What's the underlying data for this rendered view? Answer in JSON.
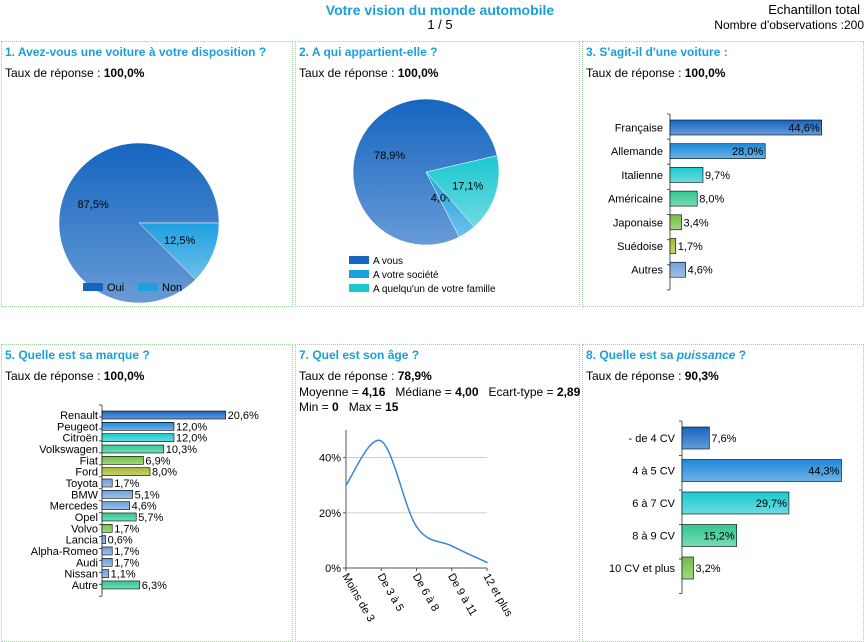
{
  "header": {
    "title": "Votre vision du monde automobile",
    "page": "1 / 5",
    "sample": "Echantillon total",
    "observations": "Nombre d'observations :200"
  },
  "colors": {
    "accent": "#1aa0d8",
    "navy": "#1565c0",
    "blue": "#1e88d8",
    "cyan": "#1cc8d0",
    "green": "#30c890",
    "lime": "#70c040",
    "olive": "#a8b830",
    "steel": "#6f9fd8"
  },
  "panels": [
    {
      "title": "1. Avez-vous une voiture à votre disposition ?",
      "rate_label": "Taux de réponse : ",
      "rate_value": "100,0%"
    },
    {
      "title": "2. A qui appartient-elle ?",
      "rate_label": "Taux de réponse : ",
      "rate_value": "100,0%"
    },
    {
      "title": "3. S'agit-il d'une voiture :",
      "rate_label": "Taux de réponse : ",
      "rate_value": "100,0%"
    },
    {
      "title": "5. Quelle est sa marque ?",
      "rate_label": "Taux de réponse : ",
      "rate_value": "100,0%"
    },
    {
      "title": "7. Quel est son âge ?",
      "rate_label": "Taux de réponse : ",
      "rate_value": "78,9%",
      "stats_line1": {
        "mean_label": "Moyenne = ",
        "mean": "4,16",
        "median_label": "Médiane = ",
        "median": "4,00",
        "sd_label": "Ecart-type = ",
        "sd": "2,89"
      },
      "stats_line2": {
        "min_label": "Min = ",
        "min": "0",
        "max_label": "Max = ",
        "max": "15"
      }
    },
    {
      "title_prefix": "8. Quelle est sa ",
      "title_emph": "puissance",
      "title_suffix": " ?",
      "rate_label": "Taux de réponse : ",
      "rate_value": "90,3%"
    }
  ],
  "chart_data": [
    {
      "type": "pie",
      "id": "q1",
      "categories": [
        "Oui",
        "Non"
      ],
      "values": [
        87.5,
        12.5
      ],
      "labels": [
        "87,5%",
        "12,5%"
      ],
      "colors": [
        "#1565c0",
        "#1e9fe0"
      ],
      "legend": "bottom"
    },
    {
      "type": "pie",
      "id": "q2",
      "categories": [
        "A vous",
        "A votre société",
        "A quelqu'un de votre famille"
      ],
      "values": [
        78.9,
        4.0,
        17.1
      ],
      "labels": [
        "78,9%",
        "4,0%",
        "17,1%"
      ],
      "colors": [
        "#1565c0",
        "#1e9fe0",
        "#1cc8d0"
      ],
      "legend": "bottom-left"
    },
    {
      "type": "bar",
      "orientation": "horizontal",
      "id": "q3",
      "categories": [
        "Française",
        "Allemande",
        "Italienne",
        "Américaine",
        "Japonaise",
        "Suédoise",
        "Autres"
      ],
      "values": [
        44.6,
        28.0,
        9.7,
        8.0,
        3.4,
        1.7,
        4.6
      ],
      "labels": [
        "44,6%",
        "28,0%",
        "9,7%",
        "8,0%",
        "3,4%",
        "1,7%",
        "4,6%"
      ],
      "colors": [
        "#1565c0",
        "#1e88d8",
        "#1cc8d0",
        "#30c890",
        "#70c040",
        "#a8b830",
        "#6f9fd8"
      ],
      "xlim": [
        0,
        50
      ]
    },
    {
      "type": "bar",
      "orientation": "horizontal",
      "id": "q5",
      "categories": [
        "Renault",
        "Peugeot",
        "Citroën",
        "Volkswagen",
        "Fiat",
        "Ford",
        "Toyota",
        "BMW",
        "Mercedes",
        "Opel",
        "Volvo",
        "Lancia",
        "Alpha-Romeo",
        "Audi",
        "Nissan",
        "Autre"
      ],
      "values": [
        20.6,
        12.0,
        12.0,
        10.3,
        6.9,
        8.0,
        1.7,
        5.1,
        4.6,
        5.7,
        1.7,
        0.6,
        1.7,
        1.7,
        1.1,
        6.3
      ],
      "labels": [
        "20,6%",
        "12,0%",
        "12,0%",
        "10,3%",
        "6,9%",
        "8,0%",
        "1,7%",
        "5,1%",
        "4,6%",
        "5,7%",
        "1,7%",
        "0,6%",
        "1,7%",
        "1,7%",
        "1,1%",
        "6,3%"
      ],
      "colors": [
        "#1565c0",
        "#1e88d8",
        "#1cc8d0",
        "#30c890",
        "#70c040",
        "#a8b830",
        "#6f9fd8",
        "#6f9fd8",
        "#6f9fd8",
        "#30c890",
        "#70c040",
        "#6f9fd8",
        "#6f9fd8",
        "#6f9fd8",
        "#6f9fd8",
        "#30c890"
      ],
      "xlim": [
        0,
        25
      ]
    },
    {
      "type": "line",
      "id": "q7",
      "categories": [
        "Moins de 3",
        "De 3 à 5",
        "De 6 à 8",
        "De 9 à 11",
        "12 et plus"
      ],
      "values": [
        30,
        46,
        15,
        8,
        2
      ],
      "yticks": [
        "0%",
        "20%",
        "40%"
      ],
      "ytick_values": [
        0,
        20,
        40
      ],
      "ylim": [
        0,
        50
      ],
      "color": "#3a86d8"
    },
    {
      "type": "bar",
      "orientation": "horizontal",
      "id": "q8",
      "categories": [
        "- de 4 CV",
        "4 à 5 CV",
        "6 à 7 CV",
        "8 à 9 CV",
        "10 CV et plus"
      ],
      "values": [
        7.6,
        44.3,
        29.7,
        15.2,
        3.2
      ],
      "labels": [
        "7,6%",
        "44,3%",
        "29,7%",
        "15,2%",
        "3,2%"
      ],
      "colors": [
        "#1565c0",
        "#1e88d8",
        "#1cc8d0",
        "#30c890",
        "#70c040"
      ],
      "xlim": [
        0,
        50
      ]
    }
  ]
}
